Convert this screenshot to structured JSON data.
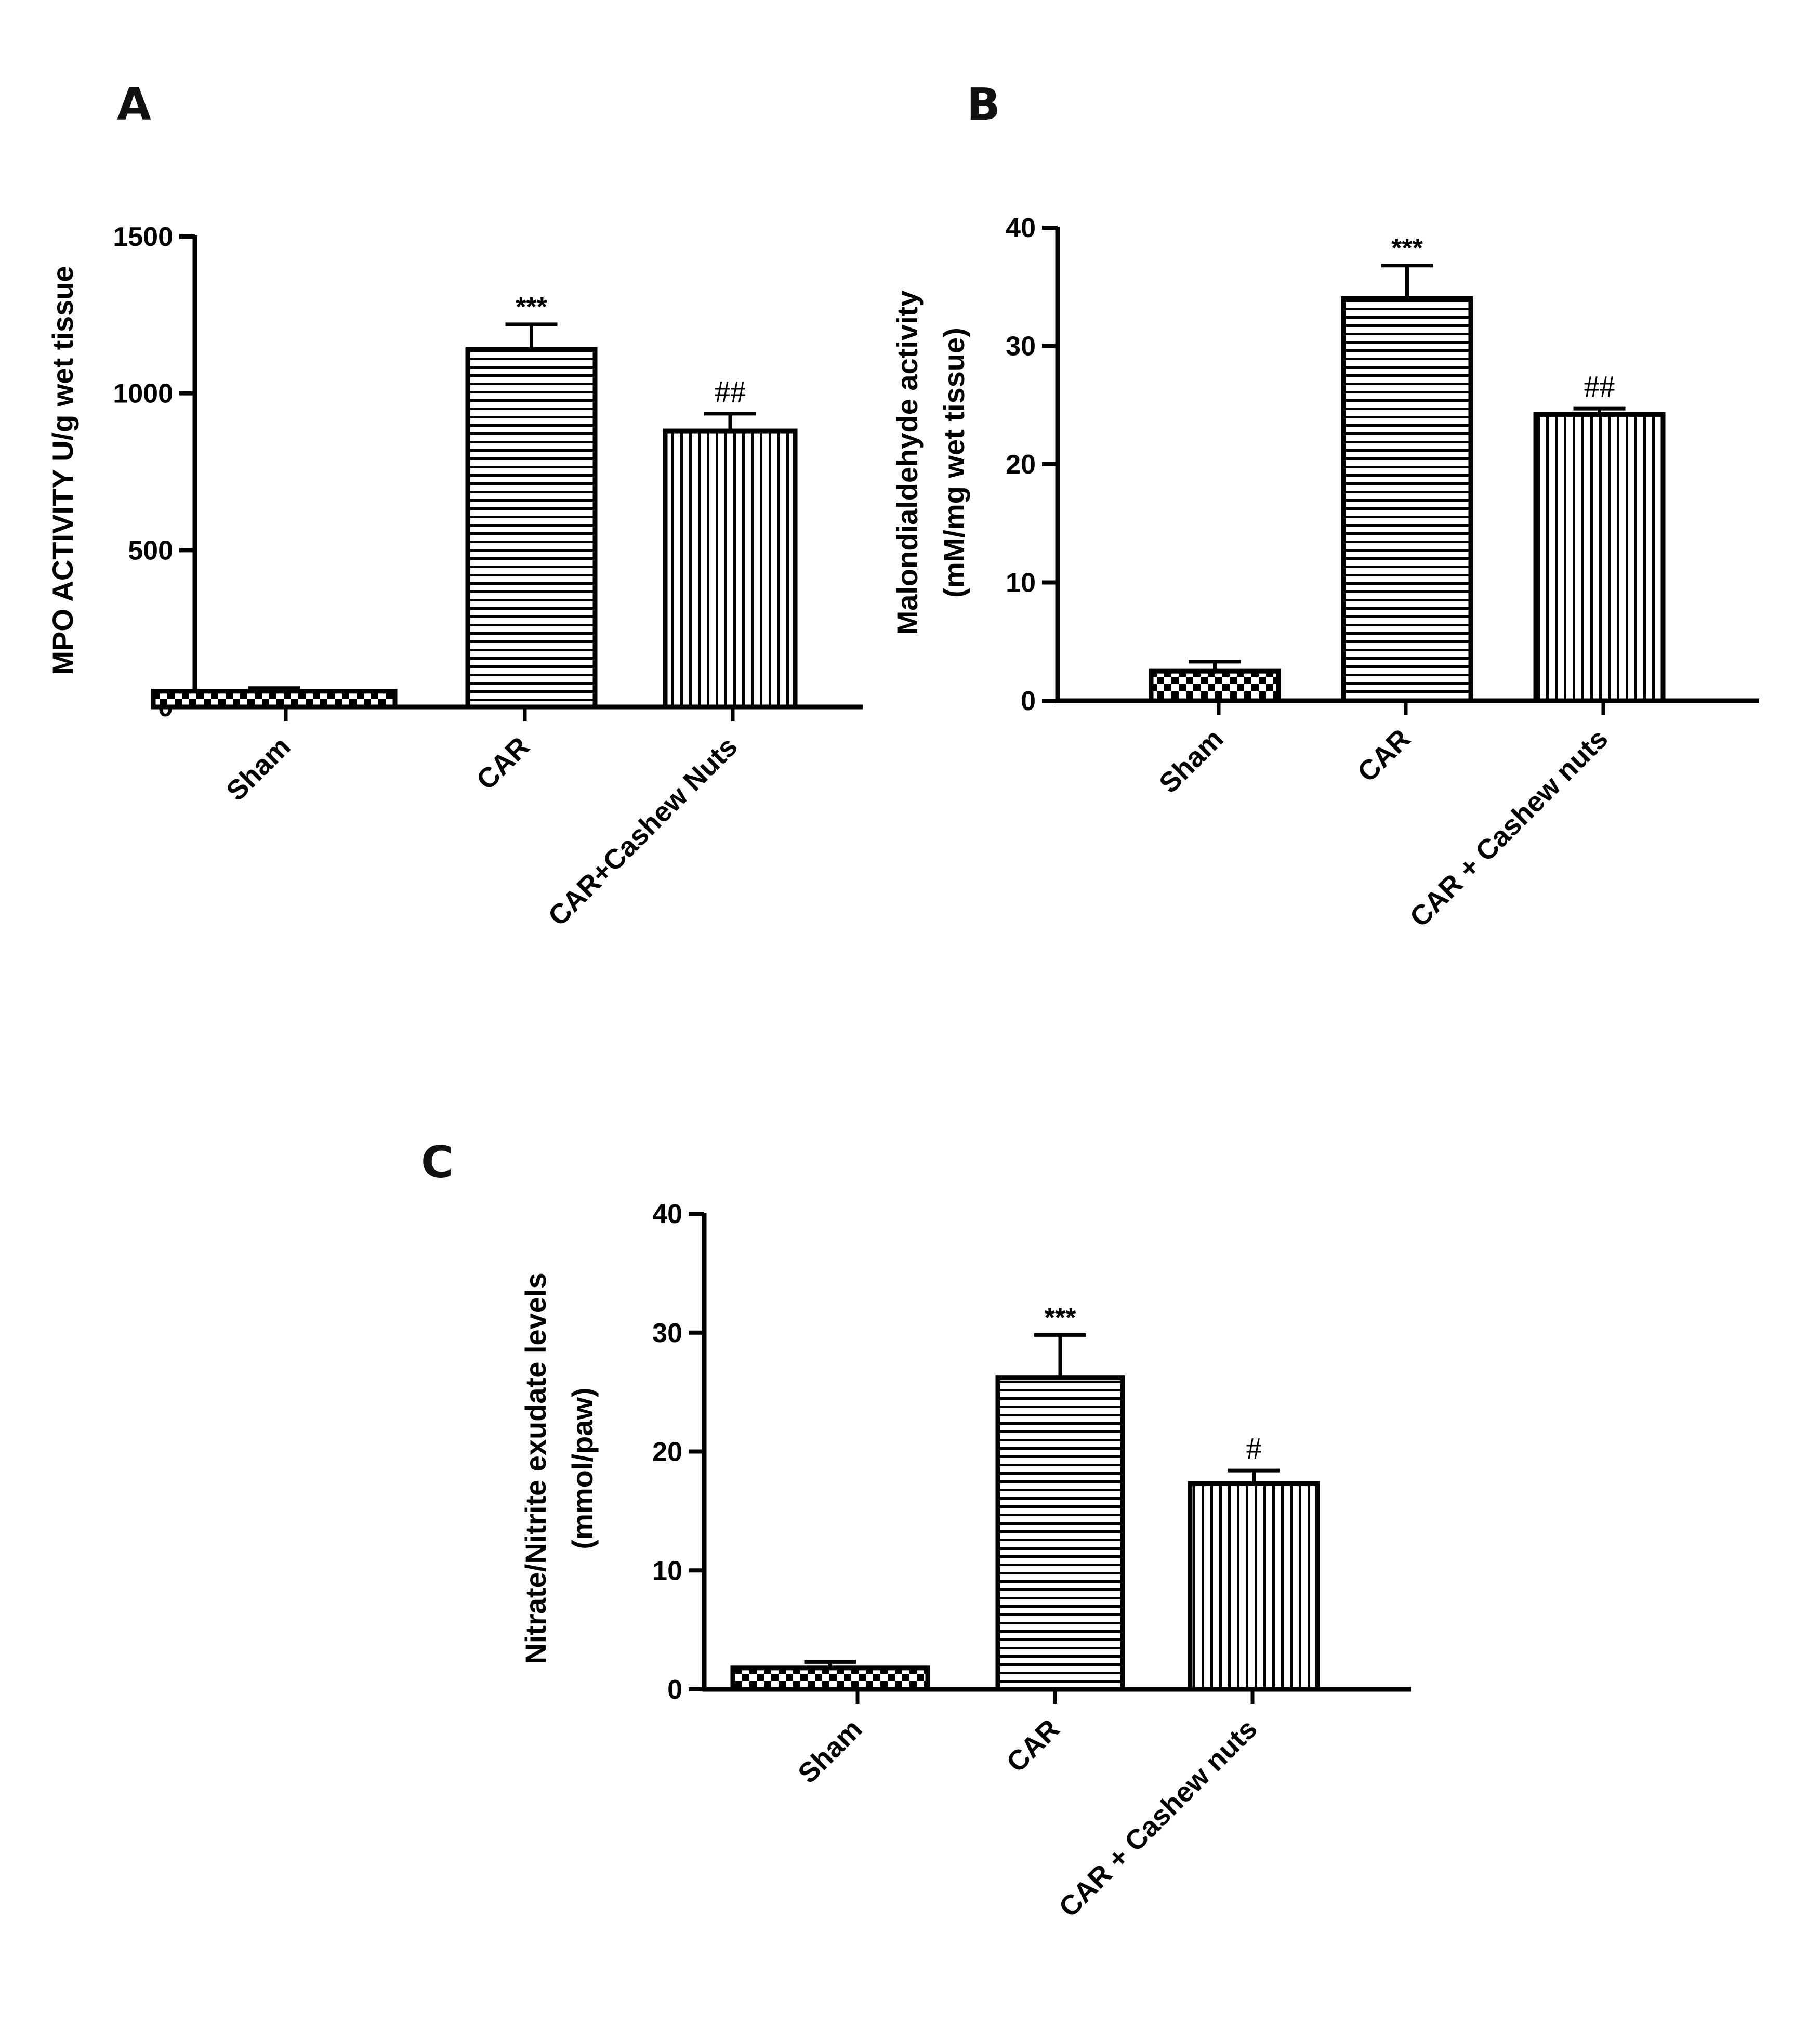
{
  "chart_data": [
    {
      "panel": "A",
      "type": "bar",
      "categories": [
        "Sham",
        "CAR",
        "CAR+Cashew Nuts"
      ],
      "values": [
        50,
        1140,
        880
      ],
      "errors": [
        10,
        80,
        55
      ],
      "annotations": [
        "",
        "***",
        "##"
      ],
      "patterns": [
        "checker",
        "horizontal",
        "vertical"
      ],
      "ylabel": [
        "MPO ACTIVITY U/g wet tissue"
      ],
      "ylim": [
        0,
        1500
      ],
      "yticks": [
        "0",
        "500",
        "1000",
        "1500"
      ],
      "grid": false
    },
    {
      "panel": "B",
      "type": "bar",
      "categories": [
        "Sham",
        "CAR",
        "CAR + Cashew nuts"
      ],
      "values": [
        2.5,
        34,
        24.2
      ],
      "errors": [
        0.8,
        2.8,
        0.5
      ],
      "annotations": [
        "",
        "***",
        "##"
      ],
      "patterns": [
        "checker",
        "horizontal",
        "vertical"
      ],
      "ylabel": [
        "Malondialdehyde activity",
        "(mM/mg wet tissue)"
      ],
      "ylim": [
        0,
        40
      ],
      "yticks": [
        "0",
        "10",
        "20",
        "30",
        "40"
      ],
      "grid": false
    },
    {
      "panel": "C",
      "type": "bar",
      "categories": [
        "Sham",
        "CAR",
        "CAR + Cashew nuts"
      ],
      "values": [
        1.8,
        26.2,
        17.3
      ],
      "errors": [
        0.5,
        3.6,
        1.1
      ],
      "annotations": [
        "",
        "***",
        "#"
      ],
      "patterns": [
        "checker",
        "horizontal",
        "vertical"
      ],
      "ylabel": [
        "Nitrate/Nitrite exudate levels",
        "(mmol/paw)"
      ],
      "ylim": [
        0,
        40
      ],
      "yticks": [
        "0",
        "10",
        "20",
        "30",
        "40"
      ],
      "grid": false
    }
  ],
  "colors": {
    "ink": "#000000",
    "background": "#ffffff"
  }
}
